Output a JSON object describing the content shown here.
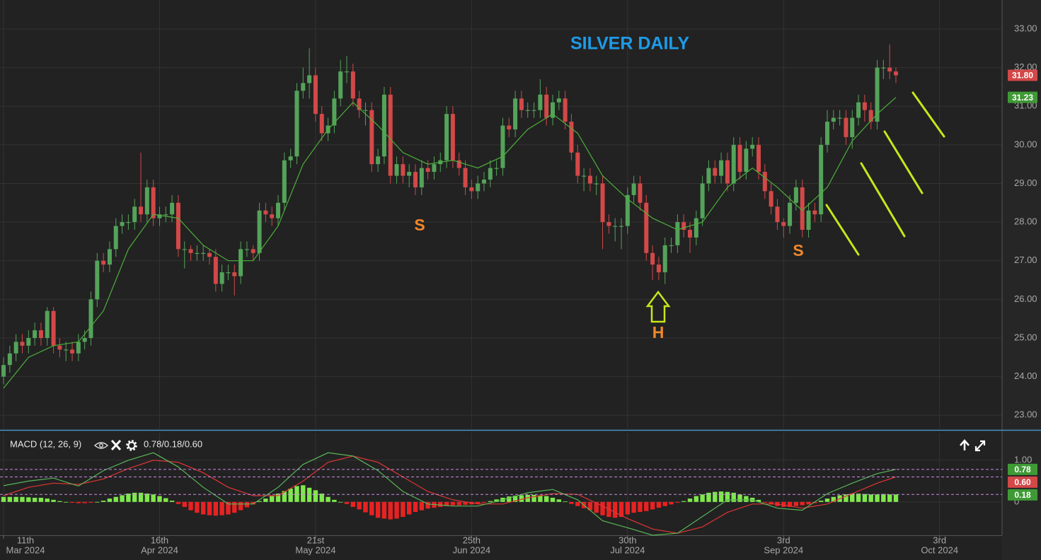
{
  "chart_data": [
    {
      "type": "candlestick",
      "title": "SILVER DAILY",
      "open": [
        24.0,
        24.3,
        24.6,
        24.9,
        24.8,
        25.0,
        25.2,
        25.0,
        25.7,
        24.8,
        24.7,
        24.7,
        24.6,
        24.9,
        25.0,
        26.0,
        27.0,
        26.9,
        27.3,
        27.9,
        28.0,
        28.0,
        28.4,
        28.2,
        28.9,
        28.1,
        28.2,
        28.2,
        28.5,
        27.3,
        27.3,
        27.2,
        27.2,
        27.2,
        27.1,
        26.4,
        26.7,
        26.7,
        26.6,
        27.3,
        27.3,
        27.2,
        28.3,
        28.2,
        28.1,
        28.5,
        29.6,
        29.7,
        31.4,
        31.6,
        31.8,
        30.8,
        30.3,
        30.5,
        31.2,
        31.9,
        31.9,
        31.2,
        30.9,
        30.9,
        29.5,
        29.7,
        31.3,
        29.2,
        29.5,
        29.2,
        29.3,
        28.9,
        29.4,
        29.3,
        29.5,
        29.6,
        30.8,
        29.6,
        29.4,
        28.9,
        28.8,
        29.0,
        29.1,
        29.4,
        29.4,
        30.5,
        30.4,
        31.2,
        30.9,
        30.9,
        30.9,
        31.3,
        30.7,
        31.1,
        31.2,
        30.6,
        29.8,
        29.2,
        29.2,
        29.0,
        29.0,
        28.0,
        27.9,
        27.9,
        27.9,
        28.7,
        29.0,
        28.5,
        27.2,
        26.9,
        26.7,
        27.4,
        27.4,
        28.0,
        27.8,
        27.6,
        28.1,
        29.0,
        29.4,
        29.2,
        29.6,
        29.0,
        30.0,
        29.3,
        29.9,
        30.0,
        29.3,
        28.8,
        28.4,
        28.0,
        27.9,
        28.5,
        28.9,
        27.8,
        28.3,
        28.2,
        30.0,
        30.6,
        30.7,
        30.7,
        30.2,
        30.7,
        31.1,
        30.9,
        30.6,
        32.0,
        32.0,
        31.9
      ],
      "high": [
        24.5,
        24.8,
        25.1,
        25.1,
        25.2,
        25.4,
        25.4,
        25.8,
        25.8,
        25.0,
        24.9,
        24.9,
        25.1,
        25.2,
        26.2,
        27.2,
        27.2,
        27.5,
        28.1,
        28.2,
        28.2,
        28.6,
        29.8,
        29.1,
        29.1,
        28.4,
        28.4,
        28.7,
        28.7,
        27.5,
        27.4,
        27.4,
        27.4,
        27.3,
        27.3,
        26.9,
        26.9,
        26.9,
        27.5,
        27.5,
        27.4,
        28.5,
        28.5,
        28.4,
        28.7,
        29.8,
        29.9,
        31.6,
        32.0,
        32.5,
        32.0,
        31.0,
        30.7,
        31.4,
        32.2,
        32.3,
        32.1,
        31.4,
        31.1,
        31.1,
        29.9,
        31.5,
        31.5,
        29.7,
        29.7,
        29.5,
        29.5,
        29.6,
        29.6,
        29.7,
        29.8,
        31.0,
        31.0,
        29.8,
        29.6,
        29.1,
        29.2,
        29.3,
        29.6,
        29.6,
        30.7,
        30.7,
        31.4,
        31.4,
        31.1,
        31.1,
        31.7,
        31.5,
        31.3,
        31.4,
        31.4,
        30.8,
        30.0,
        29.4,
        29.4,
        29.2,
        29.2,
        28.2,
        28.1,
        28.1,
        28.9,
        29.2,
        29.2,
        28.7,
        27.4,
        27.1,
        27.6,
        27.6,
        28.2,
        28.2,
        28.0,
        28.3,
        29.2,
        29.6,
        29.6,
        29.8,
        29.8,
        30.2,
        30.2,
        30.1,
        30.2,
        30.2,
        29.5,
        29.0,
        28.6,
        28.1,
        28.7,
        29.1,
        29.1,
        28.5,
        28.5,
        30.2,
        30.9,
        30.9,
        30.9,
        30.9,
        30.9,
        31.3,
        31.3,
        31.1,
        32.2,
        32.2,
        32.6,
        32.0
      ],
      "low": [
        23.8,
        24.1,
        24.4,
        24.6,
        24.6,
        24.8,
        24.8,
        24.8,
        24.6,
        24.5,
        24.4,
        24.4,
        24.4,
        24.7,
        24.8,
        25.8,
        26.7,
        26.7,
        27.1,
        27.7,
        27.8,
        27.8,
        28.0,
        28.0,
        27.9,
        27.9,
        28.0,
        28.0,
        27.1,
        26.8,
        27.0,
        27.0,
        27.0,
        26.9,
        26.2,
        26.2,
        26.5,
        26.1,
        26.4,
        27.1,
        27.0,
        27.0,
        28.0,
        27.9,
        27.9,
        28.3,
        29.4,
        29.5,
        31.2,
        31.2,
        30.6,
        30.1,
        30.1,
        30.3,
        31.0,
        31.6,
        31.0,
        30.7,
        30.5,
        29.3,
        29.3,
        29.5,
        29.0,
        29.0,
        29.0,
        28.9,
        28.7,
        28.7,
        29.1,
        29.1,
        29.3,
        29.4,
        29.4,
        29.2,
        28.7,
        28.6,
        28.6,
        28.8,
        28.9,
        29.2,
        29.2,
        30.2,
        30.2,
        30.7,
        30.7,
        30.7,
        30.7,
        30.5,
        30.5,
        30.9,
        30.4,
        29.6,
        29.0,
        28.8,
        28.8,
        28.7,
        27.3,
        27.7,
        27.5,
        27.3,
        27.7,
        28.5,
        28.3,
        27.0,
        26.5,
        26.5,
        26.4,
        27.2,
        27.2,
        27.6,
        27.2,
        27.4,
        27.9,
        28.8,
        29.0,
        29.0,
        28.8,
        28.8,
        29.1,
        29.1,
        29.7,
        29.1,
        28.6,
        28.2,
        27.8,
        27.6,
        27.7,
        28.3,
        27.6,
        27.6,
        28.0,
        28.0,
        29.8,
        30.4,
        30.5,
        30.0,
        29.9,
        30.5,
        30.6,
        30.4,
        30.4,
        31.7,
        31.7,
        31.6
      ],
      "close": [
        24.3,
        24.6,
        24.9,
        24.8,
        25.0,
        25.2,
        25.0,
        25.7,
        24.8,
        24.7,
        24.7,
        24.6,
        24.9,
        25.0,
        26.0,
        27.0,
        26.9,
        27.3,
        27.9,
        28.0,
        28.0,
        28.4,
        28.2,
        28.9,
        28.1,
        28.2,
        28.2,
        28.5,
        27.3,
        27.3,
        27.2,
        27.2,
        27.2,
        27.1,
        26.4,
        26.7,
        26.7,
        26.6,
        27.3,
        27.3,
        27.2,
        28.3,
        28.2,
        28.1,
        28.5,
        29.6,
        29.7,
        31.4,
        31.6,
        31.8,
        30.8,
        30.3,
        30.5,
        31.2,
        31.9,
        31.9,
        31.2,
        30.9,
        30.9,
        29.5,
        29.7,
        31.3,
        29.2,
        29.5,
        29.2,
        29.3,
        28.9,
        29.4,
        29.3,
        29.5,
        29.6,
        30.8,
        29.6,
        29.4,
        28.9,
        28.8,
        29.0,
        29.1,
        29.4,
        29.4,
        30.5,
        30.4,
        31.2,
        30.9,
        30.9,
        30.9,
        31.3,
        30.7,
        31.1,
        31.2,
        30.6,
        29.8,
        29.2,
        29.2,
        29.0,
        29.0,
        28.0,
        27.9,
        27.9,
        27.9,
        28.7,
        29.0,
        28.5,
        27.2,
        26.9,
        26.7,
        27.4,
        27.4,
        28.0,
        27.8,
        27.6,
        28.1,
        29.0,
        29.4,
        29.2,
        29.6,
        29.0,
        30.0,
        29.3,
        29.9,
        30.0,
        29.3,
        28.8,
        28.4,
        28.0,
        27.9,
        28.5,
        28.9,
        27.8,
        28.3,
        28.2,
        30.0,
        30.6,
        30.7,
        30.7,
        30.2,
        30.7,
        31.1,
        30.9,
        30.6,
        32.0,
        32.0,
        31.9,
        31.8
      ],
      "up_color": "#54a35a",
      "down_color": "#d34848",
      "moving_average": {
        "color": "#4caf3a",
        "x": [
          0,
          4,
          8,
          12,
          16,
          20,
          24,
          28,
          32,
          36,
          40,
          44,
          48,
          52,
          56,
          60,
          64,
          68,
          72,
          76,
          80,
          84,
          88,
          92,
          96,
          100,
          104,
          108,
          112,
          116,
          120,
          124,
          128,
          132,
          136,
          140,
          143
        ],
        "values": [
          23.7,
          24.5,
          24.8,
          24.9,
          25.7,
          27.3,
          28.2,
          28.1,
          27.4,
          27.0,
          27.0,
          27.9,
          29.5,
          30.4,
          31.1,
          30.5,
          29.8,
          29.5,
          29.6,
          29.4,
          29.7,
          30.4,
          30.8,
          30.3,
          29.2,
          28.6,
          28.1,
          27.8,
          28.0,
          28.9,
          29.4,
          28.9,
          28.3,
          28.9,
          30.1,
          30.8,
          31.23
        ]
      },
      "price_labels": [
        {
          "value": 31.8,
          "label": "31.80",
          "color": "#d34848"
        },
        {
          "value": 31.23,
          "label": "31.23",
          "color": "#3f9a35"
        }
      ],
      "annotations": [
        "S",
        "S",
        "H"
      ],
      "xlim": [
        -0.57,
        159.9
      ],
      "ylim": [
        22.62,
        33.75
      ],
      "yticks": [
        {
          "value": 23,
          "label": "23.00"
        },
        {
          "value": 24,
          "label": "24.00"
        },
        {
          "value": 25,
          "label": "25.00"
        },
        {
          "value": 26,
          "label": "26.00"
        },
        {
          "value": 27,
          "label": "27.00"
        },
        {
          "value": 28,
          "label": "28.00"
        },
        {
          "value": 29,
          "label": "29.00"
        },
        {
          "value": 30,
          "label": "30.00"
        },
        {
          "value": 31,
          "label": "31.00"
        },
        {
          "value": 32,
          "label": "32.00"
        },
        {
          "value": 33,
          "label": "33.00"
        }
      ],
      "grid": true
    },
    {
      "type": "macd",
      "title": "MACD (12, 26, 9)",
      "values_label": "0.78/0.18/0.60",
      "x": [
        0,
        4,
        8,
        12,
        16,
        20,
        24,
        28,
        32,
        36,
        40,
        44,
        48,
        52,
        56,
        60,
        64,
        68,
        72,
        76,
        80,
        84,
        88,
        92,
        96,
        100,
        104,
        108,
        112,
        116,
        120,
        124,
        128,
        132,
        136,
        140,
        143
      ],
      "macd": {
        "color": "#57b657",
        "values": [
          0.39,
          0.5,
          0.57,
          0.38,
          0.75,
          1.0,
          1.18,
          0.84,
          0.35,
          -0.05,
          -0.05,
          0.35,
          0.9,
          1.18,
          1.1,
          0.75,
          0.25,
          -0.05,
          -0.1,
          -0.1,
          0.05,
          0.22,
          0.3,
          0.05,
          -0.45,
          -0.62,
          -0.8,
          -0.75,
          -0.35,
          0.05,
          0.05,
          -0.15,
          -0.2,
          0.2,
          0.45,
          0.68,
          0.78
        ]
      },
      "signal": {
        "color": "#e03434",
        "values": [
          0.15,
          0.35,
          0.45,
          0.42,
          0.55,
          0.8,
          1.0,
          0.95,
          0.7,
          0.35,
          0.15,
          0.15,
          0.5,
          0.95,
          1.1,
          0.95,
          0.6,
          0.25,
          0.05,
          -0.05,
          -0.05,
          0.1,
          0.2,
          0.18,
          -0.1,
          -0.4,
          -0.65,
          -0.75,
          -0.6,
          -0.25,
          -0.05,
          -0.05,
          -0.15,
          -0.05,
          0.2,
          0.45,
          0.6
        ]
      },
      "histogram": {
        "up_color": "#7fe84c",
        "down_color": "#e82222",
        "values": [
          0.12,
          0.12,
          0.12,
          0.12,
          0.11,
          0.1,
          0.1,
          0.08,
          0.05,
          0.02,
          0.0,
          -0.02,
          -0.03,
          -0.03,
          -0.02,
          0.0,
          0.03,
          0.08,
          0.12,
          0.16,
          0.2,
          0.22,
          0.22,
          0.2,
          0.18,
          0.14,
          0.09,
          0.03,
          -0.05,
          -0.12,
          -0.2,
          -0.26,
          -0.3,
          -0.32,
          -0.33,
          -0.32,
          -0.3,
          -0.26,
          -0.2,
          -0.13,
          -0.06,
          0.02,
          0.08,
          0.14,
          0.2,
          0.26,
          0.32,
          0.38,
          0.4,
          0.34,
          0.28,
          0.2,
          0.12,
          0.05,
          0.0,
          -0.05,
          -0.12,
          -0.18,
          -0.25,
          -0.32,
          -0.38,
          -0.4,
          -0.42,
          -0.4,
          -0.36,
          -0.3,
          -0.24,
          -0.2,
          -0.16,
          -0.14,
          -0.12,
          -0.1,
          -0.08,
          -0.08,
          -0.07,
          -0.06,
          -0.04,
          -0.02,
          0.02,
          0.06,
          0.1,
          0.13,
          0.15,
          0.16,
          0.17,
          0.17,
          0.16,
          0.14,
          0.1,
          0.06,
          0.01,
          -0.05,
          -0.1,
          -0.15,
          -0.2,
          -0.26,
          -0.32,
          -0.36,
          -0.38,
          -0.36,
          -0.3,
          -0.26,
          -0.24,
          -0.22,
          -0.18,
          -0.14,
          -0.1,
          -0.06,
          -0.02,
          0.02,
          0.08,
          0.14,
          0.18,
          0.22,
          0.24,
          0.25,
          0.24,
          0.22,
          0.18,
          0.14,
          0.1,
          0.05,
          -0.02,
          -0.06,
          -0.1,
          -0.12,
          -0.12,
          -0.1,
          -0.08,
          -0.06,
          -0.03,
          0.03,
          0.08,
          0.12,
          0.16,
          0.18,
          0.2,
          0.2,
          0.19,
          0.18,
          0.18,
          0.19,
          0.18,
          0.18
        ]
      },
      "level_labels": [
        {
          "value": 0.78,
          "label": "0.78",
          "color": "#3f9a35"
        },
        {
          "value": 0.6,
          "label": "0.60",
          "color": "#d34848"
        },
        {
          "value": 0.18,
          "label": "0.18",
          "color": "#3f9a35"
        }
      ],
      "level_color": "#c98ae6",
      "xlim": [
        -0.57,
        159.9
      ],
      "ylim": [
        -0.8,
        1.66
      ],
      "yticks": [
        {
          "value": 1,
          "label": "1.00"
        },
        0
      ],
      "xticks": [
        {
          "value": 0,
          "label": "11th",
          "sublabel": "Mar 2024"
        },
        {
          "value": 25,
          "label": "16th",
          "sublabel": "Apr 2024"
        },
        {
          "value": 50,
          "label": "21st",
          "sublabel": "May 2024"
        },
        {
          "value": 75,
          "label": "25th",
          "sublabel": "Jun 2024"
        },
        {
          "value": 100,
          "label": "30th",
          "sublabel": "Jul 2024"
        },
        {
          "value": 125,
          "label": "3rd",
          "sublabel": "Sep 2024"
        },
        {
          "value": 150,
          "label": "3rd",
          "sublabel": "Oct 2024"
        }
      ],
      "grid": true
    }
  ]
}
